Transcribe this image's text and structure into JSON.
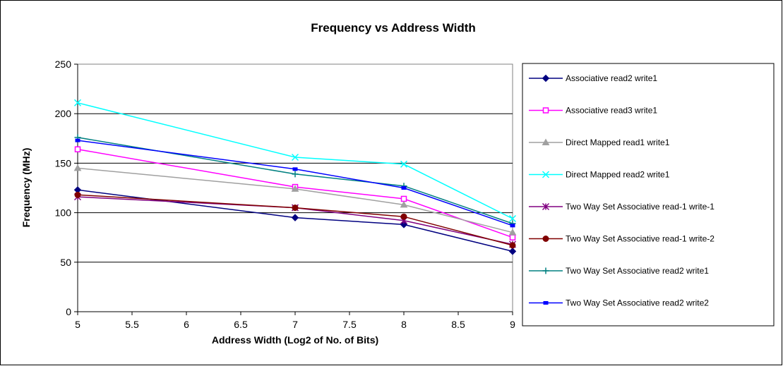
{
  "chart_data": {
    "type": "line",
    "title": "Frequency vs Address Width",
    "xlabel": "Address Width (Log2 of No. of Bits)",
    "ylabel": "Frequency (MHz)",
    "xlim": [
      5,
      9
    ],
    "ylim": [
      0,
      250
    ],
    "x_ticks": [
      "5",
      "5.5",
      "6",
      "6.5",
      "7",
      "7.5",
      "8",
      "8.5",
      "9"
    ],
    "y_ticks": [
      "0",
      "50",
      "100",
      "150",
      "200",
      "250"
    ],
    "y_tick_values": [
      0,
      50,
      100,
      150,
      200,
      250
    ],
    "x_tick_values": [
      5,
      5.5,
      6,
      6.5,
      7,
      7.5,
      8,
      8.5,
      9
    ],
    "grid": "horizontal",
    "legend": "right",
    "series": [
      {
        "name": "Associative read2 write1",
        "color": "#000080",
        "marker": "diamond",
        "x": [
          5,
          7,
          8,
          9
        ],
        "y": [
          123,
          95,
          88,
          61
        ]
      },
      {
        "name": "Associative read3 write1",
        "color": "#ff00ff",
        "marker": "square",
        "x": [
          5,
          7,
          8,
          9
        ],
        "y": [
          164,
          126,
          114,
          75
        ]
      },
      {
        "name": "Direct Mapped read1 write1",
        "color": "#a0a0a0",
        "marker": "triangle",
        "x": [
          5,
          7,
          8,
          9
        ],
        "y": [
          145,
          124,
          108,
          80
        ]
      },
      {
        "name": "Direct Mapped read2 write1",
        "color": "#00ffff",
        "marker": "x",
        "x": [
          5,
          7,
          8,
          9
        ],
        "y": [
          211,
          156,
          149,
          94
        ]
      },
      {
        "name": "Two Way Set Associative read-1 write-1",
        "color": "#800080",
        "marker": "star",
        "x": [
          5,
          7,
          8,
          9
        ],
        "y": [
          116,
          105,
          92,
          68
        ]
      },
      {
        "name": "Two Way Set Associative read-1 write-2",
        "color": "#800000",
        "marker": "circle",
        "x": [
          5,
          7,
          8,
          9
        ],
        "y": [
          118,
          105,
          96,
          67
        ]
      },
      {
        "name": "Two Way Set Associative read2 write1",
        "color": "#008080",
        "marker": "plus",
        "x": [
          5,
          7,
          8,
          9
        ],
        "y": [
          176,
          139,
          127,
          89
        ]
      },
      {
        "name": "Two Way Set Associative read2 write2",
        "color": "#0000ff",
        "marker": "dash",
        "x": [
          5,
          7,
          8,
          9
        ],
        "y": [
          173,
          144,
          125,
          87
        ]
      }
    ]
  }
}
